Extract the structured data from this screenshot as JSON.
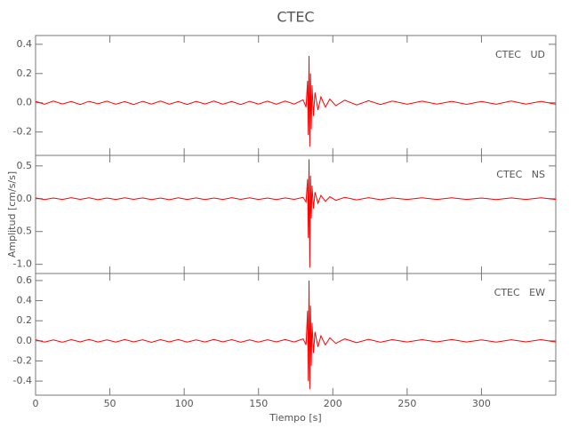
{
  "chart_data": [
    {
      "type": "line",
      "title": "CTEC",
      "annotation": "CTEC   UD",
      "x": [
        0,
        6,
        12,
        18,
        24,
        30,
        36,
        42,
        48,
        54,
        60,
        66,
        72,
        78,
        84,
        90,
        96,
        102,
        108,
        114,
        120,
        126,
        132,
        138,
        144,
        150,
        156,
        162,
        168,
        174,
        180,
        182,
        183,
        183.5,
        184,
        184.5,
        185,
        185.5,
        186,
        187,
        188,
        190,
        192,
        195,
        198,
        202,
        208,
        216,
        224,
        232,
        240,
        250,
        260,
        270,
        280,
        290,
        300,
        310,
        320,
        330,
        340,
        350
      ],
      "series": [
        {
          "color": "#ff0000",
          "values": [
            0.01,
            -0.01,
            0.012,
            -0.008,
            0.009,
            -0.012,
            0.01,
            -0.007,
            0.011,
            -0.01,
            0.008,
            -0.012,
            0.01,
            -0.009,
            0.012,
            -0.01,
            0.009,
            -0.011,
            0.01,
            -0.008,
            0.012,
            -0.01,
            0.009,
            -0.012,
            0.01,
            -0.009,
            0.011,
            -0.01,
            0.012,
            -0.009,
            0.02,
            -0.03,
            0.15,
            -0.22,
            0.32,
            -0.3,
            0.2,
            -0.18,
            0.12,
            -0.09,
            0.07,
            -0.05,
            0.04,
            -0.03,
            0.025,
            -0.02,
            0.018,
            -0.015,
            0.014,
            -0.012,
            0.012,
            -0.01,
            0.011,
            -0.009,
            0.01,
            -0.011,
            0.009,
            -0.01,
            0.012,
            -0.009,
            0.01,
            -0.01
          ]
        }
      ],
      "xlim": [
        0,
        350
      ],
      "xticks": [
        0,
        50,
        100,
        150,
        200,
        250,
        300
      ],
      "ylim": [
        -0.36,
        0.46
      ],
      "yticks": [
        -0.2,
        {
          "value": 0,
          "label": "0.0"
        },
        0.2,
        0.4
      ]
    },
    {
      "type": "line",
      "annotation": "CTEC   NS",
      "ylabel": "Amplitud [cm/s/s]",
      "x": [
        0,
        6,
        12,
        18,
        24,
        30,
        36,
        42,
        48,
        54,
        60,
        66,
        72,
        78,
        84,
        90,
        96,
        102,
        108,
        114,
        120,
        126,
        132,
        138,
        144,
        150,
        156,
        162,
        168,
        174,
        180,
        182,
        183,
        183.5,
        184,
        184.5,
        185,
        185.5,
        186,
        187,
        188,
        190,
        192,
        195,
        198,
        202,
        208,
        216,
        224,
        232,
        240,
        250,
        260,
        270,
        280,
        290,
        300,
        310,
        320,
        330,
        340,
        350
      ],
      "series": [
        {
          "color": "#ff0000",
          "values": [
            0.012,
            -0.014,
            0.01,
            -0.012,
            0.015,
            -0.01,
            0.013,
            -0.015,
            0.011,
            -0.012,
            0.014,
            -0.01,
            0.012,
            -0.013,
            0.01,
            -0.015,
            0.013,
            -0.011,
            0.012,
            -0.014,
            0.01,
            -0.012,
            0.015,
            -0.01,
            0.013,
            -0.012,
            0.011,
            -0.014,
            0.012,
            -0.01,
            0.02,
            -0.05,
            0.3,
            -0.6,
            0.6,
            -1.05,
            0.35,
            -0.3,
            0.2,
            -0.15,
            0.1,
            -0.07,
            0.05,
            -0.04,
            0.03,
            -0.025,
            0.02,
            -0.018,
            0.015,
            -0.015,
            0.012,
            -0.012,
            0.013,
            -0.011,
            0.014,
            -0.012,
            0.01,
            -0.013,
            0.012,
            -0.011,
            0.013,
            -0.012
          ]
        }
      ],
      "xlim": [
        0,
        350
      ],
      "xticks": [
        0,
        50,
        100,
        150,
        200,
        250,
        300
      ],
      "ylim": [
        -1.14,
        0.66
      ],
      "yticks": [
        {
          "value": -1,
          "label": "-1.0"
        },
        -0.5,
        {
          "value": 0,
          "label": "0.0"
        },
        0.5
      ]
    },
    {
      "type": "line",
      "annotation": "CTEC   EW",
      "xlabel": "Tiempo [s]",
      "x": [
        0,
        6,
        12,
        18,
        24,
        30,
        36,
        42,
        48,
        54,
        60,
        66,
        72,
        78,
        84,
        90,
        96,
        102,
        108,
        114,
        120,
        126,
        132,
        138,
        144,
        150,
        156,
        162,
        168,
        174,
        180,
        182,
        183,
        183.5,
        184,
        184.5,
        185,
        185.5,
        186,
        187,
        188,
        190,
        192,
        195,
        198,
        202,
        208,
        216,
        224,
        232,
        240,
        250,
        260,
        270,
        280,
        290,
        300,
        310,
        320,
        330,
        340,
        350
      ],
      "series": [
        {
          "color": "#ff0000",
          "values": [
            0.011,
            -0.012,
            0.01,
            -0.013,
            0.012,
            -0.01,
            0.014,
            -0.011,
            0.01,
            -0.012,
            0.013,
            -0.01,
            0.011,
            -0.014,
            0.012,
            -0.01,
            0.013,
            -0.012,
            0.01,
            -0.011,
            0.014,
            -0.01,
            0.012,
            -0.013,
            0.01,
            -0.012,
            0.011,
            -0.01,
            0.013,
            -0.011,
            0.02,
            -0.04,
            0.3,
            -0.4,
            0.6,
            -0.48,
            0.35,
            -0.25,
            0.18,
            -0.12,
            0.09,
            -0.06,
            0.05,
            -0.04,
            0.03,
            -0.025,
            0.02,
            -0.018,
            0.015,
            -0.013,
            0.012,
            -0.011,
            0.012,
            -0.01,
            0.013,
            -0.011,
            0.01,
            -0.012,
            0.011,
            -0.01,
            0.012,
            -0.011
          ]
        }
      ],
      "xlim": [
        0,
        350
      ],
      "xticks": [
        0,
        50,
        100,
        150,
        200,
        250,
        300
      ],
      "ylim": [
        -0.54,
        0.67
      ],
      "yticks": [
        -0.4,
        -0.2,
        {
          "value": 0,
          "label": "0.0"
        },
        0.2,
        0.4,
        0.6
      ]
    }
  ]
}
